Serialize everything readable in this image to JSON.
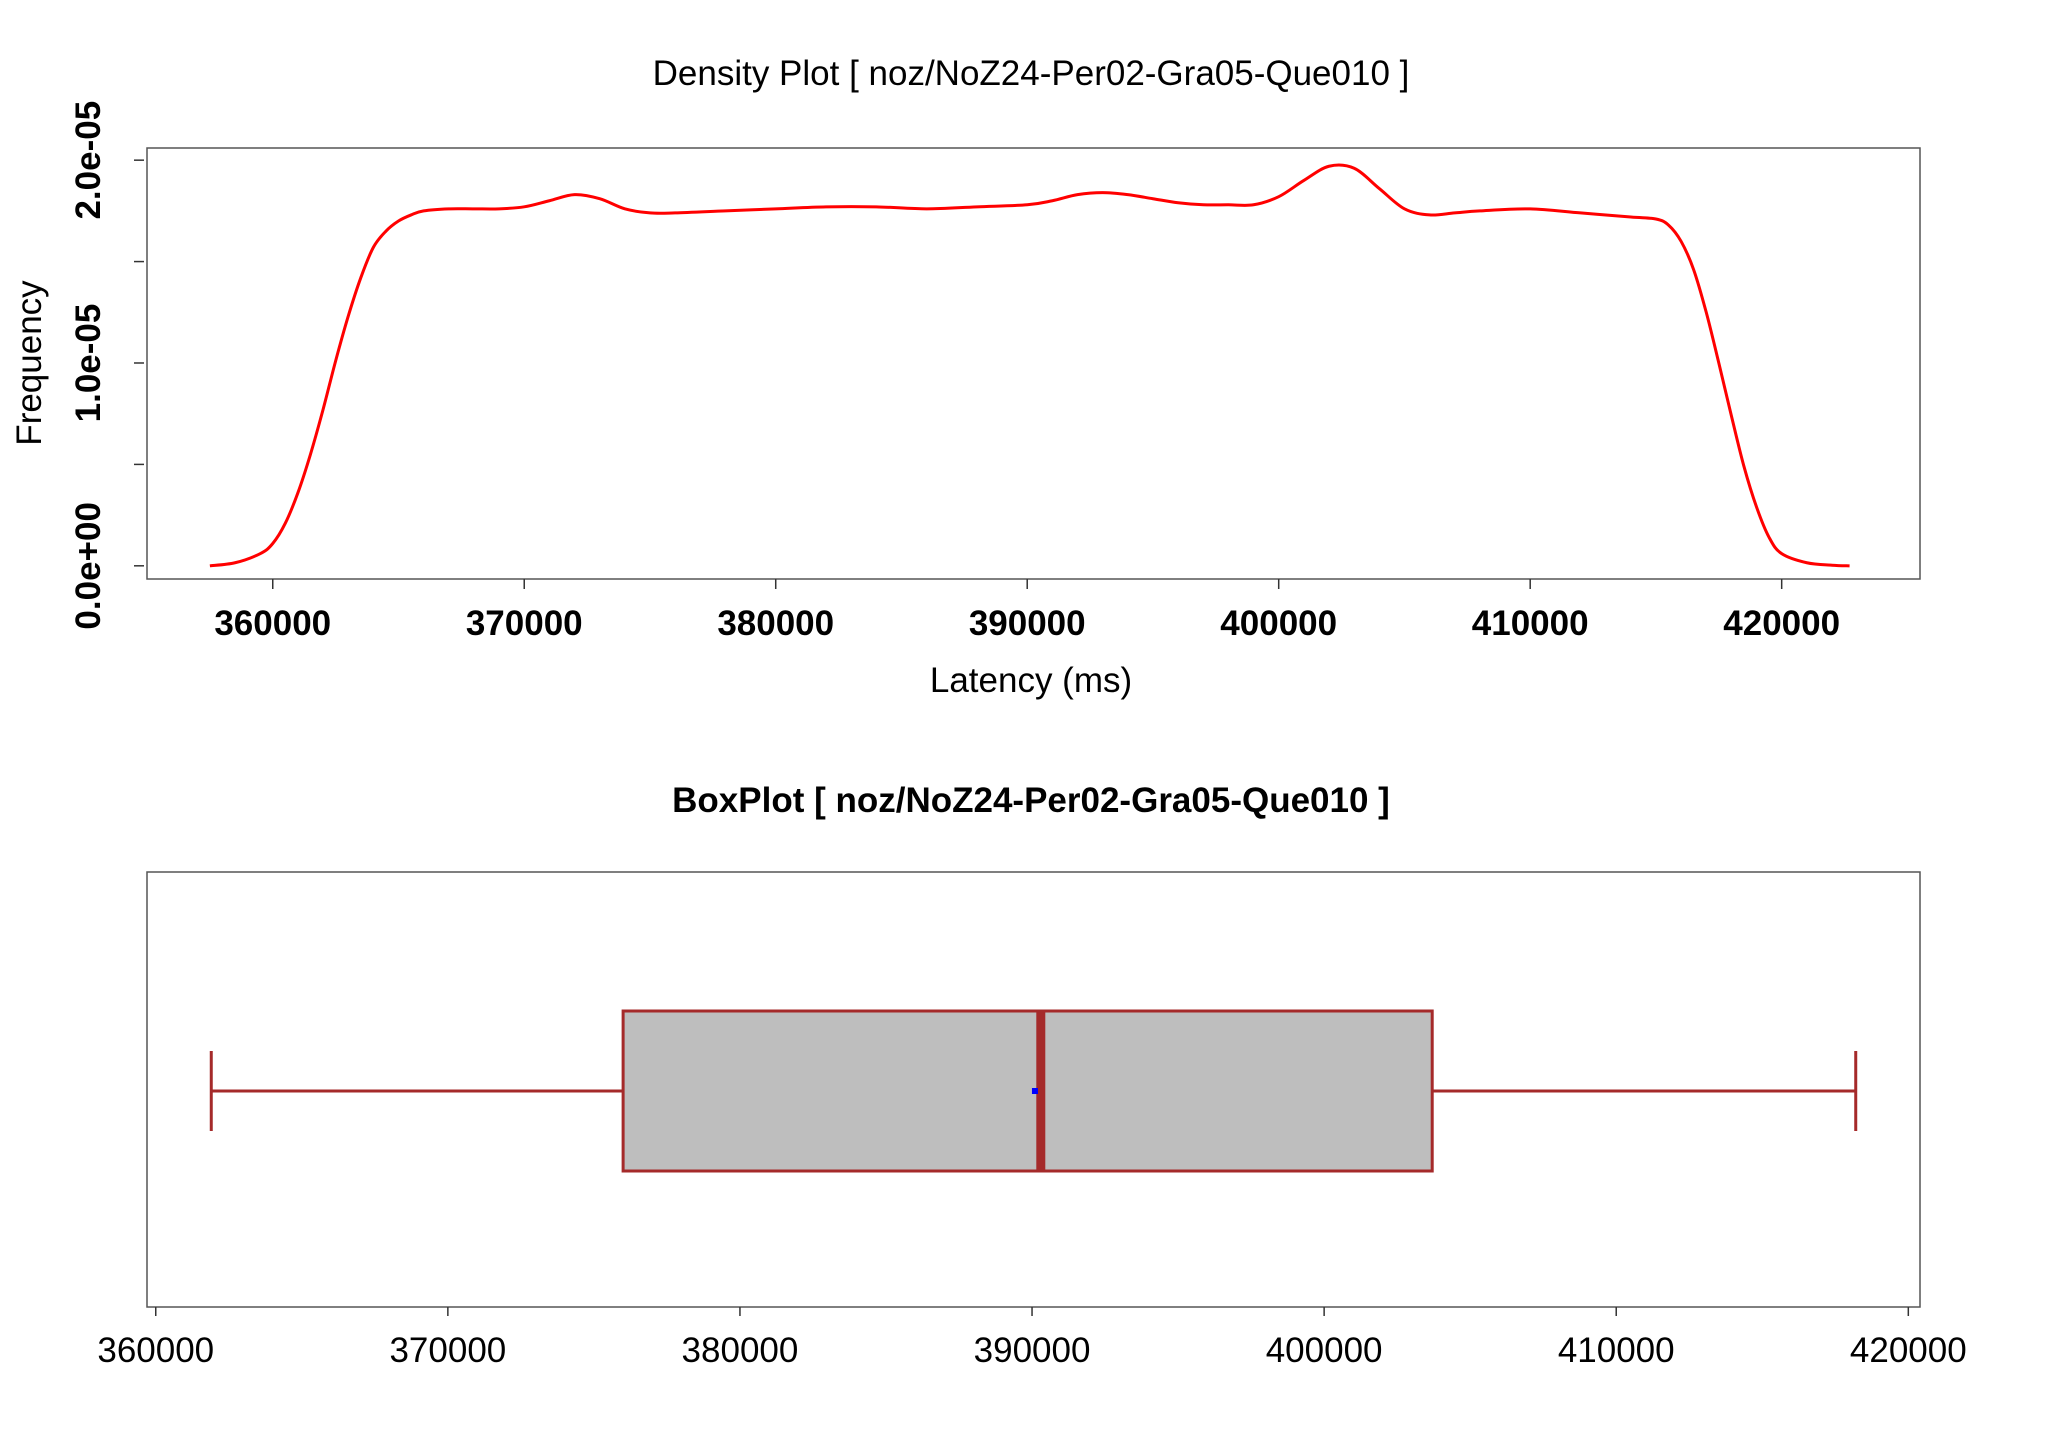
{
  "chart_data": [
    {
      "type": "line",
      "title": "Density Plot [ noz/NoZ24-Per02-Gra05-Que010 ]",
      "xlabel": "Latency (ms)",
      "ylabel": "Frequency",
      "xlim": [
        355000,
        425500
      ],
      "ylim": [
        -6.5e-07,
        2.06e-05
      ],
      "x_ticks": [
        {
          "value": 360000,
          "label": "360000"
        },
        {
          "value": 370000,
          "label": "370000"
        },
        {
          "value": 380000,
          "label": "380000"
        },
        {
          "value": 390000,
          "label": "390000"
        },
        {
          "value": 400000,
          "label": "400000"
        },
        {
          "value": 410000,
          "label": "410000"
        },
        {
          "value": 420000,
          "label": "420000"
        }
      ],
      "y_ticks": [
        {
          "value": 0,
          "label": "0.0e+00"
        },
        {
          "value": 5e-06,
          "label": ""
        },
        {
          "value": 1e-05,
          "label": "1.0e-05"
        },
        {
          "value": 1.5e-05,
          "label": ""
        },
        {
          "value": 2e-05,
          "label": "2.0e-05"
        }
      ],
      "series": [
        {
          "color": "#ff0000",
          "x": [
            357500,
            358500,
            359500,
            360000,
            360500,
            361000,
            361500,
            362000,
            362500,
            363000,
            363500,
            364000,
            364500,
            365000,
            365500,
            366000,
            367000,
            368000,
            369000,
            370000,
            371000,
            372000,
            373000,
            374000,
            375000,
            376000,
            378000,
            380000,
            382000,
            384000,
            386000,
            388000,
            390000,
            391000,
            392000,
            393000,
            394000,
            395000,
            396000,
            397000,
            398000,
            399000,
            400000,
            401000,
            402000,
            403000,
            404000,
            405000,
            406000,
            407000,
            408000,
            410000,
            412000,
            414000,
            415000,
            415500,
            416000,
            416500,
            417000,
            417500,
            418000,
            418500,
            419000,
            419500,
            420000,
            421000,
            422000,
            422700
          ],
          "values": [
            0.0,
            1.5e-07,
            6e-07,
            1.1e-06,
            2.1e-06,
            3.6e-06,
            5.5e-06,
            7.7e-06,
            1.01e-05,
            1.23e-05,
            1.42e-05,
            1.57e-05,
            1.65e-05,
            1.7e-05,
            1.73e-05,
            1.75e-05,
            1.76e-05,
            1.76e-05,
            1.76e-05,
            1.77e-05,
            1.8e-05,
            1.83e-05,
            1.81e-05,
            1.76e-05,
            1.74e-05,
            1.74e-05,
            1.75e-05,
            1.76e-05,
            1.77e-05,
            1.77e-05,
            1.76e-05,
            1.77e-05,
            1.78e-05,
            1.8e-05,
            1.83e-05,
            1.84e-05,
            1.83e-05,
            1.81e-05,
            1.79e-05,
            1.78e-05,
            1.78e-05,
            1.78e-05,
            1.82e-05,
            1.9e-05,
            1.97e-05,
            1.96e-05,
            1.86e-05,
            1.76e-05,
            1.73e-05,
            1.74e-05,
            1.75e-05,
            1.76e-05,
            1.74e-05,
            1.72e-05,
            1.71e-05,
            1.68e-05,
            1.6e-05,
            1.46e-05,
            1.25e-05,
            1e-05,
            7.4e-06,
            4.9e-06,
            2.9e-06,
            1.4e-06,
            6e-07,
            1.5e-07,
            3e-08,
            0.0
          ]
        }
      ]
    },
    {
      "type": "box",
      "title": "BoxPlot [ noz/NoZ24-Per02-Gra05-Que010 ]",
      "orientation": "horizontal",
      "xlim": [
        359700,
        420400
      ],
      "x_ticks": [
        {
          "value": 360000,
          "label": "360000"
        },
        {
          "value": 370000,
          "label": "370000"
        },
        {
          "value": 380000,
          "label": "380000"
        },
        {
          "value": 390000,
          "label": "390000"
        },
        {
          "value": 400000,
          "label": "400000"
        },
        {
          "value": 410000,
          "label": "410000"
        },
        {
          "value": 420000,
          "label": "420000"
        }
      ],
      "box": {
        "whisker_low": 361900,
        "q1": 376000,
        "median": 390300,
        "mean": 390100,
        "q3": 403700,
        "whisker_high": 418200
      },
      "colors": {
        "box_fill": "#bebebe",
        "box_stroke": "#a52a2a",
        "median": "#a52a2a",
        "mean_marker": "#0000ff"
      }
    }
  ]
}
